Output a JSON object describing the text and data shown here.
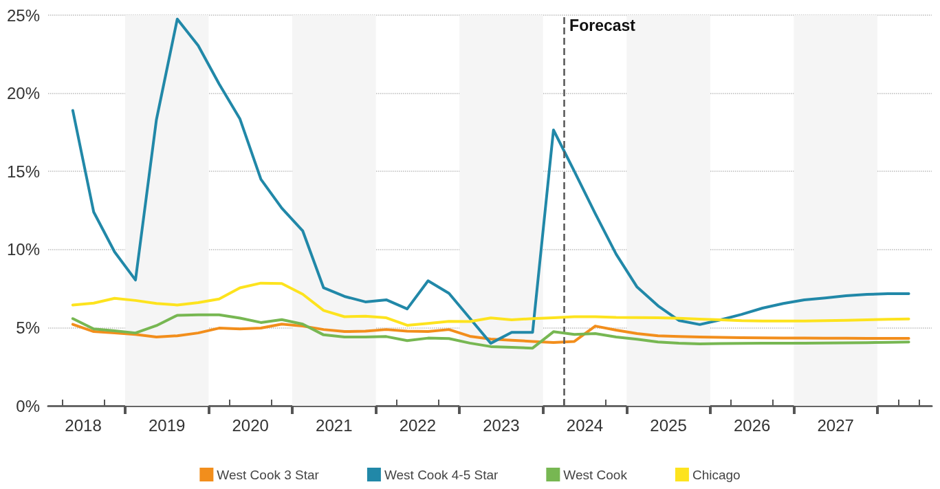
{
  "chart_data": {
    "type": "line",
    "x": [
      2018.375,
      2018.625,
      2018.875,
      2019.125,
      2019.375,
      2019.625,
      2019.875,
      2020.125,
      2020.375,
      2020.625,
      2020.875,
      2021.125,
      2021.375,
      2021.625,
      2021.875,
      2022.125,
      2022.375,
      2022.625,
      2022.875,
      2023.125,
      2023.375,
      2023.625,
      2023.875,
      2024.125,
      2024.375,
      2024.625,
      2024.875,
      2025.125,
      2025.375,
      2025.625,
      2025.875,
      2026.125,
      2026.375,
      2026.625,
      2026.875,
      2027.125,
      2027.375,
      2027.625,
      2027.875,
      2028.125,
      2028.375
    ],
    "series": [
      {
        "name": "West Cook 3 Star",
        "color": "#f28e1c",
        "values": [
          5.21,
          4.75,
          4.66,
          4.57,
          4.4,
          4.48,
          4.66,
          4.97,
          4.92,
          4.97,
          5.23,
          5.1,
          4.88,
          4.75,
          4.78,
          4.88,
          4.78,
          4.75,
          4.88,
          4.45,
          4.27,
          4.19,
          4.12,
          4.05,
          4.12,
          5.1,
          4.84,
          4.62,
          4.48,
          4.43,
          4.4,
          4.38,
          4.36,
          4.35,
          4.34,
          4.33,
          4.32,
          4.32,
          4.31,
          4.31,
          4.31
        ]
      },
      {
        "name": "West Cook 4-5 Star",
        "color": "#2188a8",
        "values": [
          18.9,
          12.4,
          9.85,
          8.05,
          18.3,
          24.75,
          23.05,
          20.6,
          18.35,
          14.5,
          12.65,
          11.2,
          7.55,
          7.0,
          6.65,
          6.78,
          6.2,
          8.0,
          7.2,
          5.6,
          4.0,
          4.7,
          4.7,
          17.65,
          15.0,
          12.3,
          9.7,
          7.6,
          6.4,
          5.46,
          5.2,
          5.5,
          5.85,
          6.25,
          6.55,
          6.78,
          6.9,
          7.04,
          7.13,
          7.17,
          7.17
        ]
      },
      {
        "name": "West Cook",
        "color": "#77b752",
        "values": [
          5.58,
          4.92,
          4.8,
          4.66,
          5.13,
          5.79,
          5.82,
          5.82,
          5.61,
          5.33,
          5.51,
          5.23,
          4.54,
          4.4,
          4.4,
          4.43,
          4.17,
          4.33,
          4.3,
          4.01,
          3.79,
          3.74,
          3.69,
          4.74,
          4.57,
          4.62,
          4.4,
          4.26,
          4.08,
          4.0,
          3.96,
          3.98,
          3.99,
          4.0,
          4.0,
          4.01,
          4.02,
          4.03,
          4.04,
          4.06,
          4.08
        ]
      },
      {
        "name": "Chicago",
        "color": "#fde31e",
        "values": [
          6.45,
          6.57,
          6.88,
          6.74,
          6.55,
          6.45,
          6.6,
          6.83,
          7.55,
          7.85,
          7.82,
          7.14,
          6.1,
          5.7,
          5.73,
          5.63,
          5.15,
          5.27,
          5.4,
          5.39,
          5.62,
          5.5,
          5.58,
          5.63,
          5.7,
          5.7,
          5.66,
          5.65,
          5.63,
          5.6,
          5.55,
          5.5,
          5.45,
          5.43,
          5.42,
          5.43,
          5.45,
          5.47,
          5.5,
          5.53,
          5.56
        ]
      }
    ],
    "xlim": [
      2018.08,
      2028.65
    ],
    "xticks": [
      {
        "value": 2018.25,
        "label": null
      },
      {
        "value": 2018.5,
        "label": "2018"
      },
      {
        "value": 2018.75,
        "label": null
      },
      {
        "value": 2019,
        "label": null
      },
      {
        "value": 2019.25,
        "label": null
      },
      {
        "value": 2019.5,
        "label": "2019"
      },
      {
        "value": 2019.75,
        "label": null
      },
      {
        "value": 2020,
        "label": null
      },
      {
        "value": 2020.25,
        "label": null
      },
      {
        "value": 2020.5,
        "label": "2020"
      },
      {
        "value": 2020.75,
        "label": null
      },
      {
        "value": 2021,
        "label": null
      },
      {
        "value": 2021.25,
        "label": null
      },
      {
        "value": 2021.5,
        "label": "2021"
      },
      {
        "value": 2021.75,
        "label": null
      },
      {
        "value": 2022,
        "label": null
      },
      {
        "value": 2022.25,
        "label": null
      },
      {
        "value": 2022.5,
        "label": "2022"
      },
      {
        "value": 2022.75,
        "label": null
      },
      {
        "value": 2023,
        "label": null
      },
      {
        "value": 2023.25,
        "label": null
      },
      {
        "value": 2023.5,
        "label": "2023"
      },
      {
        "value": 2023.75,
        "label": null
      },
      {
        "value": 2024,
        "label": null
      },
      {
        "value": 2024.25,
        "label": null
      },
      {
        "value": 2024.5,
        "label": "2024"
      },
      {
        "value": 2024.75,
        "label": null
      },
      {
        "value": 2025,
        "label": null
      },
      {
        "value": 2025.25,
        "label": null
      },
      {
        "value": 2025.5,
        "label": "2025"
      },
      {
        "value": 2025.75,
        "label": null
      },
      {
        "value": 2026,
        "label": null
      },
      {
        "value": 2026.25,
        "label": null
      },
      {
        "value": 2026.5,
        "label": "2026"
      },
      {
        "value": 2026.75,
        "label": null
      },
      {
        "value": 2027,
        "label": null
      },
      {
        "value": 2027.25,
        "label": null
      },
      {
        "value": 2027.5,
        "label": "2027"
      },
      {
        "value": 2027.75,
        "label": null
      },
      {
        "value": 2028,
        "label": null
      },
      {
        "value": 2028.25,
        "label": null
      },
      {
        "value": 2028.5,
        "label": null
      }
    ],
    "ylim": [
      0,
      25
    ],
    "yticks": [
      {
        "value": 0,
        "label": "0%"
      },
      {
        "value": 5,
        "label": "5%"
      },
      {
        "value": 10,
        "label": "10%"
      },
      {
        "value": 15,
        "label": "15%"
      },
      {
        "value": 20,
        "label": "20%"
      },
      {
        "value": 25,
        "label": "25%"
      }
    ],
    "grid": "y",
    "legend": "bottom",
    "marker": "none",
    "line_style": "solid",
    "bands": [
      {
        "axis": "x",
        "from": 2019,
        "to": 2020,
        "color": "#f5f5f5"
      },
      {
        "axis": "x",
        "from": 2021,
        "to": 2022,
        "color": "#f5f5f5"
      },
      {
        "axis": "x",
        "from": 2023,
        "to": 2024,
        "color": "#f5f5f5"
      },
      {
        "axis": "x",
        "from": 2025,
        "to": 2026,
        "color": "#f5f5f5"
      },
      {
        "axis": "x",
        "from": 2027,
        "to": 2028,
        "color": "#f5f5f5"
      }
    ],
    "ref_lines": [
      {
        "axis": "x",
        "value": 2024.25,
        "label": "Forecast",
        "color": "#555555",
        "line_style": "dashed"
      }
    ]
  }
}
